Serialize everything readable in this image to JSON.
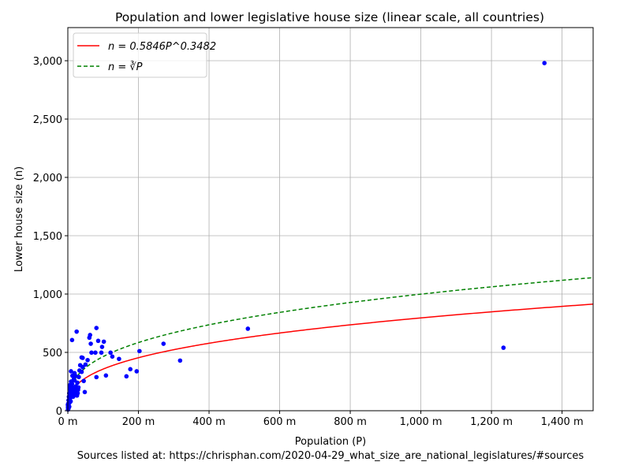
{
  "chart_data": {
    "type": "scatter",
    "title": "Population and lower legislative house size (linear scale, all countries)",
    "xlabel": "Population (P)",
    "ylabel": "Lower house size (n)",
    "footer": "Sources listed at: https://chrisphan.com/2020-04-29_what_size_are_national_legislatures/#sources",
    "xlim": [
      0,
      1488
    ],
    "ylim": [
      0,
      3284
    ],
    "x_unit": "millions",
    "x_ticks": [
      0,
      200,
      400,
      600,
      800,
      1000,
      1200,
      1400
    ],
    "x_tick_labels": [
      "0 m",
      "200 m",
      "400 m",
      "600 m",
      "800 m",
      "1,000 m",
      "1,200 m",
      "1,400 m"
    ],
    "y_ticks": [
      0,
      500,
      1000,
      1500,
      2000,
      2500,
      3000
    ],
    "y_tick_labels": [
      "0",
      "500",
      "1,000",
      "1,500",
      "2,000",
      "2,500",
      "3,000"
    ],
    "grid": true,
    "legend_position": "top-left",
    "colors": {
      "points": "#0000ff",
      "fit": "#ff0000",
      "cuberoot": "#008000"
    },
    "series": [
      {
        "type": "scatter",
        "x": [
          25,
          12,
          81,
          63,
          61,
          65,
          86,
          102,
          97,
          67,
          78,
          95,
          121,
          126,
          145,
          203,
          271,
          318,
          177,
          166,
          195,
          108,
          81,
          48,
          39,
          42,
          56,
          50,
          35,
          42,
          33,
          9,
          19,
          39,
          45,
          31,
          510,
          1234,
          1350,
          1,
          2,
          3,
          4,
          5,
          6,
          7,
          8,
          9,
          10,
          11,
          12,
          14,
          15,
          16,
          18,
          20,
          22,
          24,
          26,
          28,
          30,
          3,
          5,
          7,
          10,
          13,
          17,
          21,
          27,
          2,
          4,
          8,
          11,
          19,
          23,
          29,
          6,
          1,
          0.5,
          0.3,
          0.1
        ],
        "y": [
          678,
          606,
          709,
          649,
          626,
          574,
          599,
          592,
          547,
          498,
          498,
          498,
          498,
          464,
          444,
          511,
          574,
          430,
          356,
          295,
          338,
          302,
          288,
          160,
          457,
          453,
          434,
          396,
          390,
          374,
          345,
          338,
          322,
          333,
          255,
          289,
          703,
          540,
          2980,
          60,
          90,
          120,
          150,
          100,
          200,
          180,
          140,
          250,
          160,
          130,
          230,
          170,
          120,
          200,
          150,
          180,
          140,
          160,
          130,
          150,
          200,
          40,
          70,
          110,
          250,
          300,
          270,
          300,
          240,
          20,
          35,
          80,
          190,
          260,
          210,
          180,
          220,
          15,
          10,
          30,
          50
        ]
      },
      {
        "type": "line",
        "legend": "n = 0.5846P^0.3482",
        "coef": 0.5846,
        "exponent": 0.3482,
        "style": "solid"
      },
      {
        "type": "line",
        "legend": "n = ∛P",
        "coef": 1,
        "exponent": 0.3333,
        "style": "dashed"
      }
    ]
  }
}
